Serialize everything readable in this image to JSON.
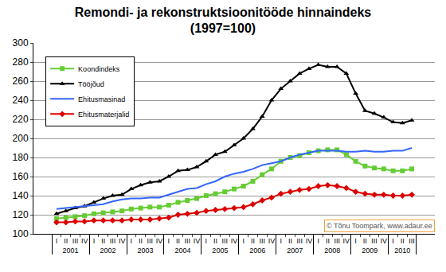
{
  "chart_data": {
    "type": "line",
    "title": "Remondi- ja rekonstruktsioonitööde hinnaindeks\n(1997=100)",
    "categories": [
      "I",
      "II",
      "III",
      "IV",
      "I",
      "II",
      "III",
      "IV",
      "I",
      "II",
      "III",
      "IV",
      "I",
      "II",
      "III",
      "IV",
      "I",
      "II",
      "III",
      "IV",
      "I",
      "II",
      "III",
      "IV",
      "I",
      "II",
      "III",
      "IV",
      "I",
      "II",
      "III",
      "IV",
      "I",
      "II",
      "III",
      "IV",
      "I",
      "II",
      "III"
    ],
    "category_groups": [
      "2001",
      "2001",
      "2001",
      "2001",
      "2002",
      "2002",
      "2002",
      "2002",
      "2003",
      "2003",
      "2003",
      "2003",
      "2004",
      "2004",
      "2004",
      "2004",
      "2005",
      "2005",
      "2005",
      "2005",
      "2006",
      "2006",
      "2006",
      "2006",
      "2007",
      "2007",
      "2007",
      "2007",
      "2008",
      "2008",
      "2008",
      "2008",
      "2009",
      "2009",
      "2009",
      "2009",
      "2010",
      "2010",
      "2010"
    ],
    "series": [
      {
        "name": "Koondindeks",
        "color": "#66cc33",
        "marker": "square",
        "values": [
          116,
          117,
          118,
          119,
          121,
          122,
          123,
          124,
          126,
          127,
          128,
          128,
          130,
          133,
          135,
          137,
          140,
          142,
          144,
          147,
          150,
          155,
          162,
          168,
          176,
          180,
          182,
          185,
          187,
          188,
          188,
          183,
          176,
          171,
          169,
          168,
          166,
          166,
          168
        ]
      },
      {
        "name": "Tööjõud",
        "color": "#000000",
        "marker": "triangle",
        "values": [
          121,
          124,
          127,
          129,
          133,
          137,
          140,
          141,
          147,
          151,
          154,
          155,
          160,
          166,
          167,
          170,
          176,
          183,
          186,
          193,
          200,
          210,
          223,
          240,
          252,
          260,
          268,
          273,
          277,
          275,
          275,
          268,
          247,
          229,
          226,
          222,
          217,
          216,
          219
        ]
      },
      {
        "name": "Ehitusmasinad",
        "color": "#3366ff",
        "marker": "none",
        "values": [
          126,
          127,
          128,
          129,
          130,
          131,
          134,
          136,
          137,
          137,
          138,
          138,
          141,
          144,
          147,
          148,
          152,
          155,
          160,
          163,
          165,
          168,
          172,
          174,
          176,
          180,
          183,
          185,
          187,
          187,
          187,
          186,
          186,
          187,
          186,
          186,
          187,
          187,
          190
        ]
      },
      {
        "name": "Ehitusmaterjalid",
        "color": "#dd0000",
        "marker": "diamond",
        "values": [
          112,
          112,
          113,
          113,
          114,
          114,
          114,
          114,
          115,
          115,
          115,
          116,
          117,
          120,
          121,
          122,
          124,
          125,
          126,
          127,
          128,
          131,
          135,
          138,
          142,
          144,
          146,
          147,
          150,
          151,
          150,
          148,
          144,
          142,
          141,
          141,
          140,
          140,
          141
        ]
      }
    ],
    "ylim": [
      100,
      300
    ],
    "yticks": [
      100,
      120,
      140,
      160,
      180,
      200,
      220,
      240,
      260,
      280,
      300
    ],
    "grid": true,
    "legend": "upper left",
    "annotation": "© Tõnu Toompark, www.adaur.ee"
  }
}
